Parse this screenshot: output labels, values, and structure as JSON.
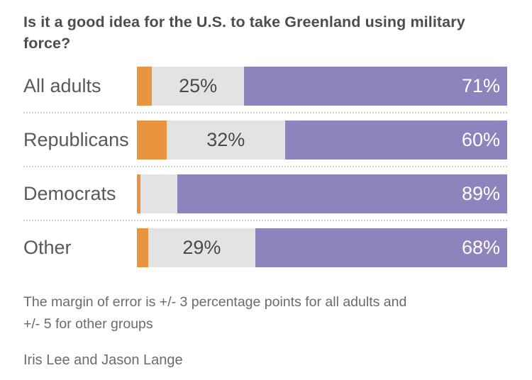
{
  "title": "Is it a good idea for the U.S. to take Greenland using military force?",
  "colors": {
    "orange_segment": "#e9943e",
    "gray_segment": "#e3e3e3",
    "purple_segment": "#8f83be",
    "title_text": "#4d4d4d",
    "category_text": "#58595b",
    "percent_text_gray": "#4a4a4a",
    "percent_text_white": "#ffffff",
    "footnote_text": "#6b6b6b",
    "separator_dotted": "#cfcfcf"
  },
  "chart_data": {
    "type": "bar",
    "subtype": "horizontal-stacked",
    "title": "Is it a good idea for the U.S. to take Greenland using military force?",
    "categories": [
      "All adults",
      "Republicans",
      "Democrats",
      "Other"
    ],
    "series": [
      {
        "name": "orange",
        "values": [
          4,
          8,
          1,
          3
        ],
        "labels": [
          "",
          "",
          "",
          ""
        ],
        "color": "#e9943e"
      },
      {
        "name": "gray",
        "values": [
          25,
          32,
          10,
          29
        ],
        "labels": [
          "25%",
          "32%",
          "",
          "29%"
        ],
        "color": "#e3e3e3"
      },
      {
        "name": "purple",
        "values": [
          71,
          60,
          89,
          68
        ],
        "labels": [
          "71%",
          "60%",
          "89%",
          "68%"
        ],
        "color": "#8f83be"
      }
    ],
    "xlim": [
      0,
      100
    ],
    "grid": false,
    "legend": "none",
    "value_label_positions": "gray labels centered in segment, purple labels right-aligned inside segment"
  },
  "footnote_lines": [
    "The margin of error is +/- 3 percentage points for all adults and",
    "+/- 5 for other groups"
  ],
  "byline": "Iris Lee and Jason Lange"
}
